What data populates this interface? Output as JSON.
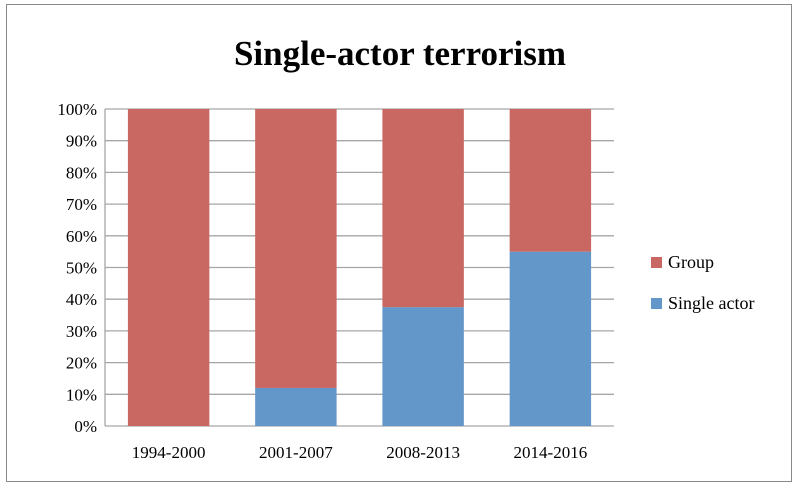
{
  "chart_data": {
    "type": "bar",
    "stacked": true,
    "title": "Single-actor terrorism",
    "categories": [
      "1994-2000",
      "2001-2007",
      "2008-2013",
      "2014-2016"
    ],
    "series": [
      {
        "name": "Single actor",
        "values": [
          0,
          12,
          37.5,
          55
        ],
        "color": "#6396c9"
      },
      {
        "name": "Group",
        "values": [
          100,
          88,
          62.5,
          45
        ],
        "color": "#c96762"
      }
    ],
    "ylim": [
      0,
      100
    ],
    "yticks": [
      "0%",
      "10%",
      "20%",
      "30%",
      "40%",
      "50%",
      "60%",
      "70%",
      "80%",
      "90%",
      "100%"
    ],
    "grid": true,
    "legend": [
      "Group",
      "Single actor"
    ],
    "legend_position": "right",
    "xlabel": "",
    "ylabel": ""
  }
}
